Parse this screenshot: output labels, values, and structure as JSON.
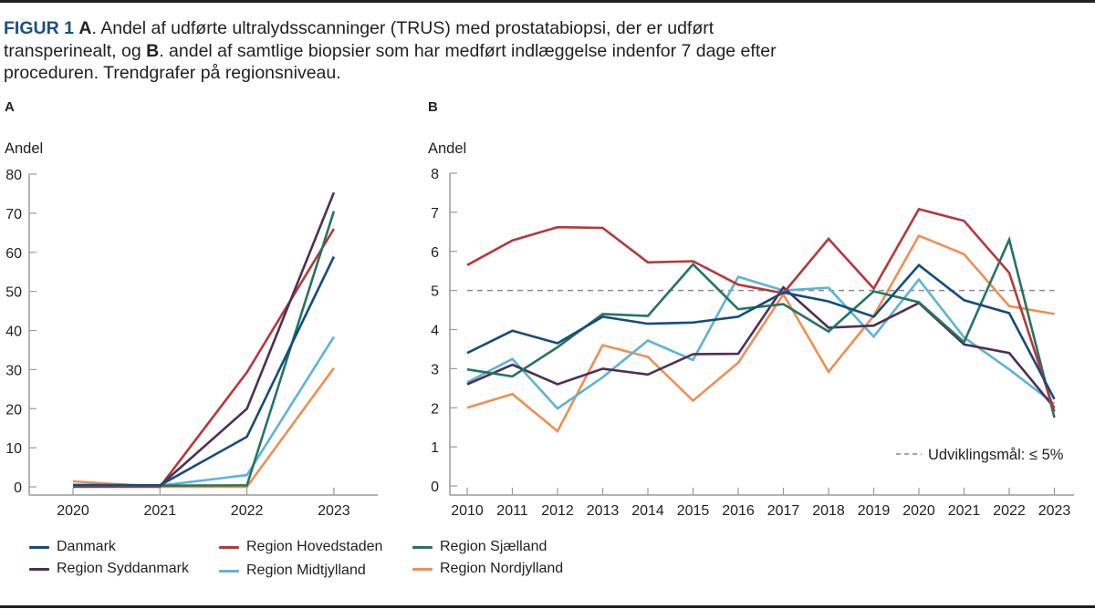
{
  "caption": {
    "figure_label": "FIGUR 1",
    "part_a": "A",
    "text_a": ". Andel af udførte ultralydsscanninger (TRUS) med prostatabiopsi, der er udført transperinealt, og ",
    "part_b": "B",
    "text_b": ". andel af samtlige biopsier som har medført indlæggelse indenfor 7 dage efter proceduren. Trendgrafer på regionsniveau."
  },
  "colors": {
    "Danmark": "#154c7e",
    "Region Hovedstaden": "#b8373a",
    "Region Sjælland": "#247561",
    "Region Syddanmark": "#4f2f55",
    "Region Midtjylland": "#5db3d8",
    "Region Nordjylland": "#ef8f52",
    "caption_accent": "#1c4f82",
    "goal_line": "#8a8a8a"
  },
  "legend": [
    {
      "name": "Danmark"
    },
    {
      "name": "Region Hovedstaden"
    },
    {
      "name": "Region Sjælland"
    },
    {
      "name": "Region Syddanmark"
    },
    {
      "name": "Region Midtjylland"
    },
    {
      "name": "Region Nordjylland"
    }
  ],
  "chart_data": [
    {
      "panel": "A",
      "type": "line",
      "title": "A",
      "xlabel": "",
      "ylabel": "Andel",
      "x": [
        "2020",
        "2021",
        "2022",
        "2023"
      ],
      "ylim": [
        0,
        80
      ],
      "yticks": [
        0,
        10,
        20,
        30,
        40,
        50,
        60,
        70,
        80
      ],
      "grid": false,
      "series": [
        {
          "name": "Region Nordjylland",
          "values": [
            1.4,
            0.0,
            0.0,
            30.4
          ]
        },
        {
          "name": "Region Midtjylland",
          "values": [
            0.3,
            0.3,
            3.0,
            38.4
          ]
        },
        {
          "name": "Region Hovedstaden",
          "values": [
            0.0,
            0.0,
            29.3,
            66.0
          ]
        },
        {
          "name": "Region Syddanmark",
          "values": [
            0.2,
            0.3,
            20.0,
            75.3
          ]
        },
        {
          "name": "Region Sjælland",
          "values": [
            0.3,
            0.3,
            0.4,
            70.5
          ]
        },
        {
          "name": "Danmark",
          "values": [
            0.5,
            0.4,
            12.8,
            58.9
          ]
        }
      ]
    },
    {
      "panel": "B",
      "type": "line",
      "title": "B",
      "xlabel": "",
      "ylabel": "Andel",
      "x": [
        "2010",
        "2011",
        "2012",
        "2013",
        "2014",
        "2015",
        "2016",
        "2017",
        "2018",
        "2019",
        "2020",
        "2021",
        "2022",
        "2023"
      ],
      "ylim": [
        0,
        8
      ],
      "yticks": [
        0,
        1,
        2,
        3,
        4,
        5,
        6,
        7,
        8
      ],
      "grid": false,
      "reference_line": {
        "value": 5,
        "style": "dashed",
        "label": "Udviklingsmål: ≤ 5%"
      },
      "series": [
        {
          "name": "Region Nordjylland",
          "values": [
            2.0,
            2.35,
            1.4,
            3.6,
            3.3,
            2.18,
            3.15,
            4.9,
            2.92,
            4.35,
            6.4,
            5.93,
            4.6,
            4.4
          ]
        },
        {
          "name": "Region Midtjylland",
          "values": [
            2.65,
            3.25,
            1.98,
            2.78,
            3.72,
            3.22,
            5.35,
            5.0,
            5.07,
            3.82,
            5.28,
            3.8,
            2.98,
            2.1
          ]
        },
        {
          "name": "Region Syddanmark",
          "values": [
            2.6,
            3.1,
            2.6,
            3.0,
            2.85,
            3.37,
            3.38,
            5.08,
            4.05,
            4.1,
            4.68,
            3.62,
            3.4,
            2.0
          ]
        },
        {
          "name": "Region Sjælland",
          "values": [
            2.98,
            2.8,
            3.55,
            4.4,
            4.35,
            5.67,
            4.52,
            4.65,
            3.95,
            4.98,
            4.7,
            3.68,
            6.3,
            1.75
          ]
        },
        {
          "name": "Region Hovedstaden",
          "values": [
            5.65,
            6.28,
            6.62,
            6.6,
            5.72,
            5.75,
            5.15,
            4.93,
            6.32,
            5.05,
            7.08,
            6.78,
            5.45,
            1.9
          ]
        },
        {
          "name": "Danmark",
          "values": [
            3.4,
            3.97,
            3.65,
            4.33,
            4.15,
            4.18,
            4.33,
            4.95,
            4.72,
            4.33,
            5.65,
            4.75,
            4.42,
            2.22
          ]
        }
      ]
    }
  ]
}
